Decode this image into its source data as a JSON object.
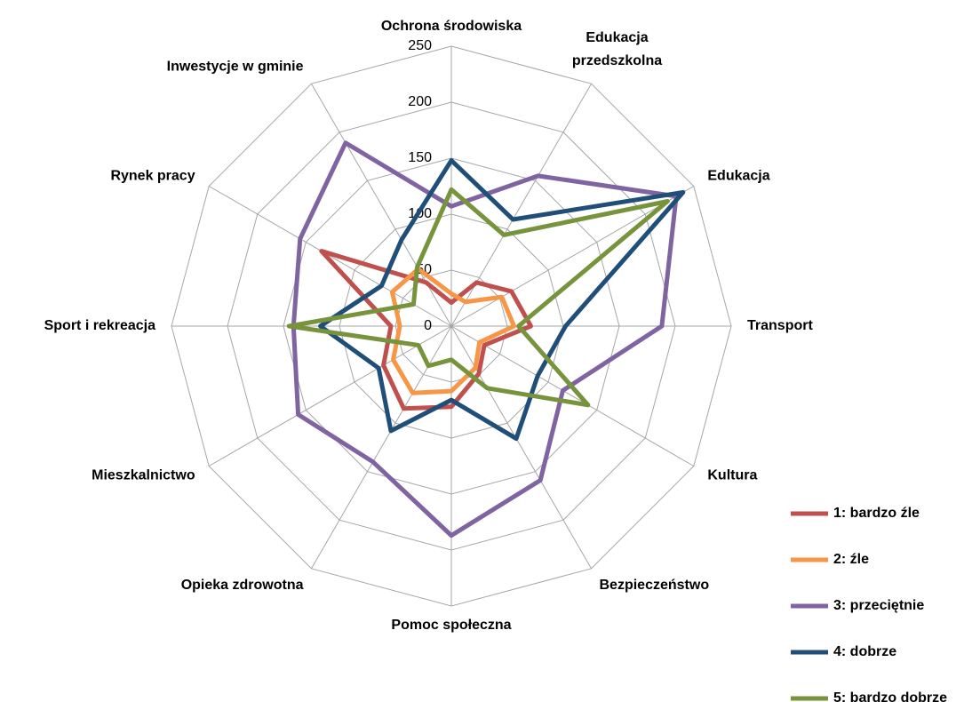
{
  "chart_data": {
    "type": "radar",
    "categories": [
      "Ochrona środowiska",
      "Edukacja przedszkolna",
      "Edukacja",
      "Transport",
      "Kultura",
      "Bezpieczeństwo",
      "Pomoc społeczna",
      "Opieka zdrowotna",
      "Mieszkalnictwo",
      "Sport i rekreacja",
      "Rynek pracy",
      "Inwestycje w gminie"
    ],
    "series": [
      {
        "name": "1: bardzo źle",
        "color": "#c0504d",
        "values": [
          21,
          45,
          62,
          71,
          34,
          49,
          72,
          85,
          70,
          54,
          134,
          45
        ]
      },
      {
        "name": "2: źle",
        "color": "#f79646",
        "values": [
          29,
          25,
          52,
          56,
          29,
          43,
          58,
          69,
          60,
          46,
          61,
          59
        ]
      },
      {
        "name": "3: przeciętnie",
        "color": "#8064a2",
        "values": [
          107,
          155,
          232,
          188,
          115,
          159,
          187,
          140,
          158,
          141,
          156,
          189
        ]
      },
      {
        "name": "4: dobrze",
        "color": "#1f4e79",
        "values": [
          148,
          110,
          239,
          102,
          89,
          116,
          66,
          108,
          75,
          117,
          72,
          89
        ]
      },
      {
        "name": "5: bardzo dobrze",
        "color": "#77933c",
        "values": [
          122,
          94,
          223,
          60,
          141,
          64,
          30,
          41,
          34,
          145,
          39,
          61
        ]
      }
    ],
    "ylim": [
      0,
      250
    ],
    "yticks": [
      0,
      50,
      100,
      150,
      200,
      250
    ],
    "grid": true,
    "legend": "right"
  }
}
